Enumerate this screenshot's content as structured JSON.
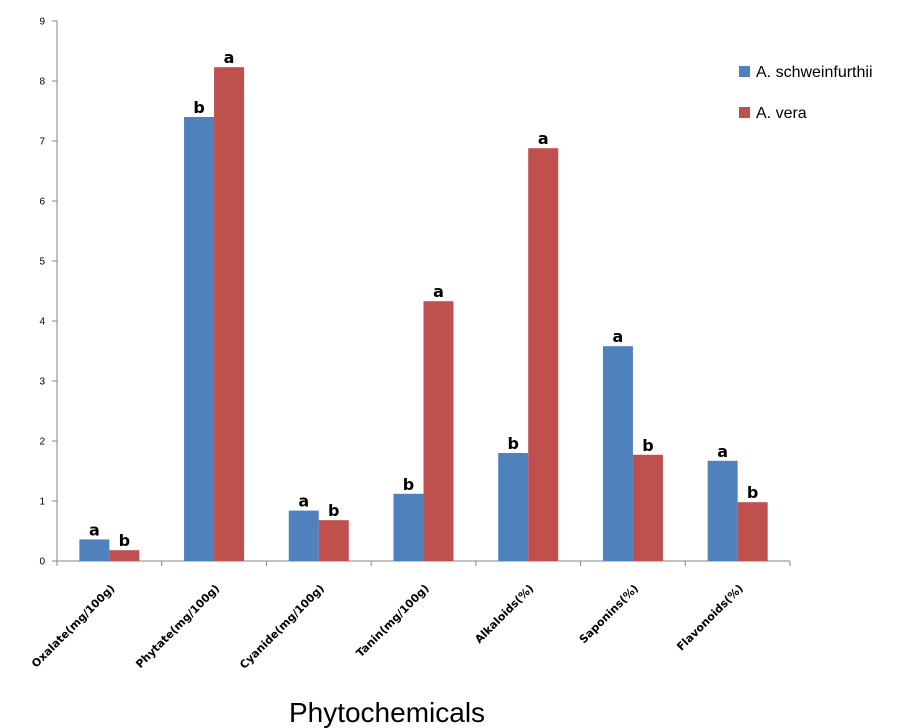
{
  "chart_data": {
    "type": "bar",
    "xlabel": "Phytochemicals",
    "ylabel": "",
    "ylim": [
      0,
      9
    ],
    "yticks": [
      "0",
      "1",
      "2",
      "3",
      "4",
      "5",
      "6",
      "7",
      "8",
      "9"
    ],
    "grid": false,
    "legend_position": "right",
    "categories": [
      "Oxalate(mg/100g)",
      "Phytate(mg/100g)",
      "Cyanide(mg/100g)",
      "Tanin(mg/100g)",
      "Alkaloids(%)",
      "Saponins(%)",
      "Flavonoids(%)"
    ],
    "series": [
      {
        "name": "A. schweinfurthii",
        "color": "#4F81BD",
        "values": [
          0.36,
          7.4,
          0.84,
          1.12,
          1.8,
          3.58,
          1.67
        ],
        "labels": [
          "a",
          "b",
          "a",
          "b",
          "b",
          "a",
          "a"
        ]
      },
      {
        "name": "A. vera",
        "color": "#C0504D",
        "values": [
          0.18,
          8.23,
          0.68,
          4.33,
          6.88,
          1.77,
          0.98
        ],
        "labels": [
          "b",
          "a",
          "b",
          "a",
          "a",
          "b",
          "b"
        ]
      }
    ]
  }
}
